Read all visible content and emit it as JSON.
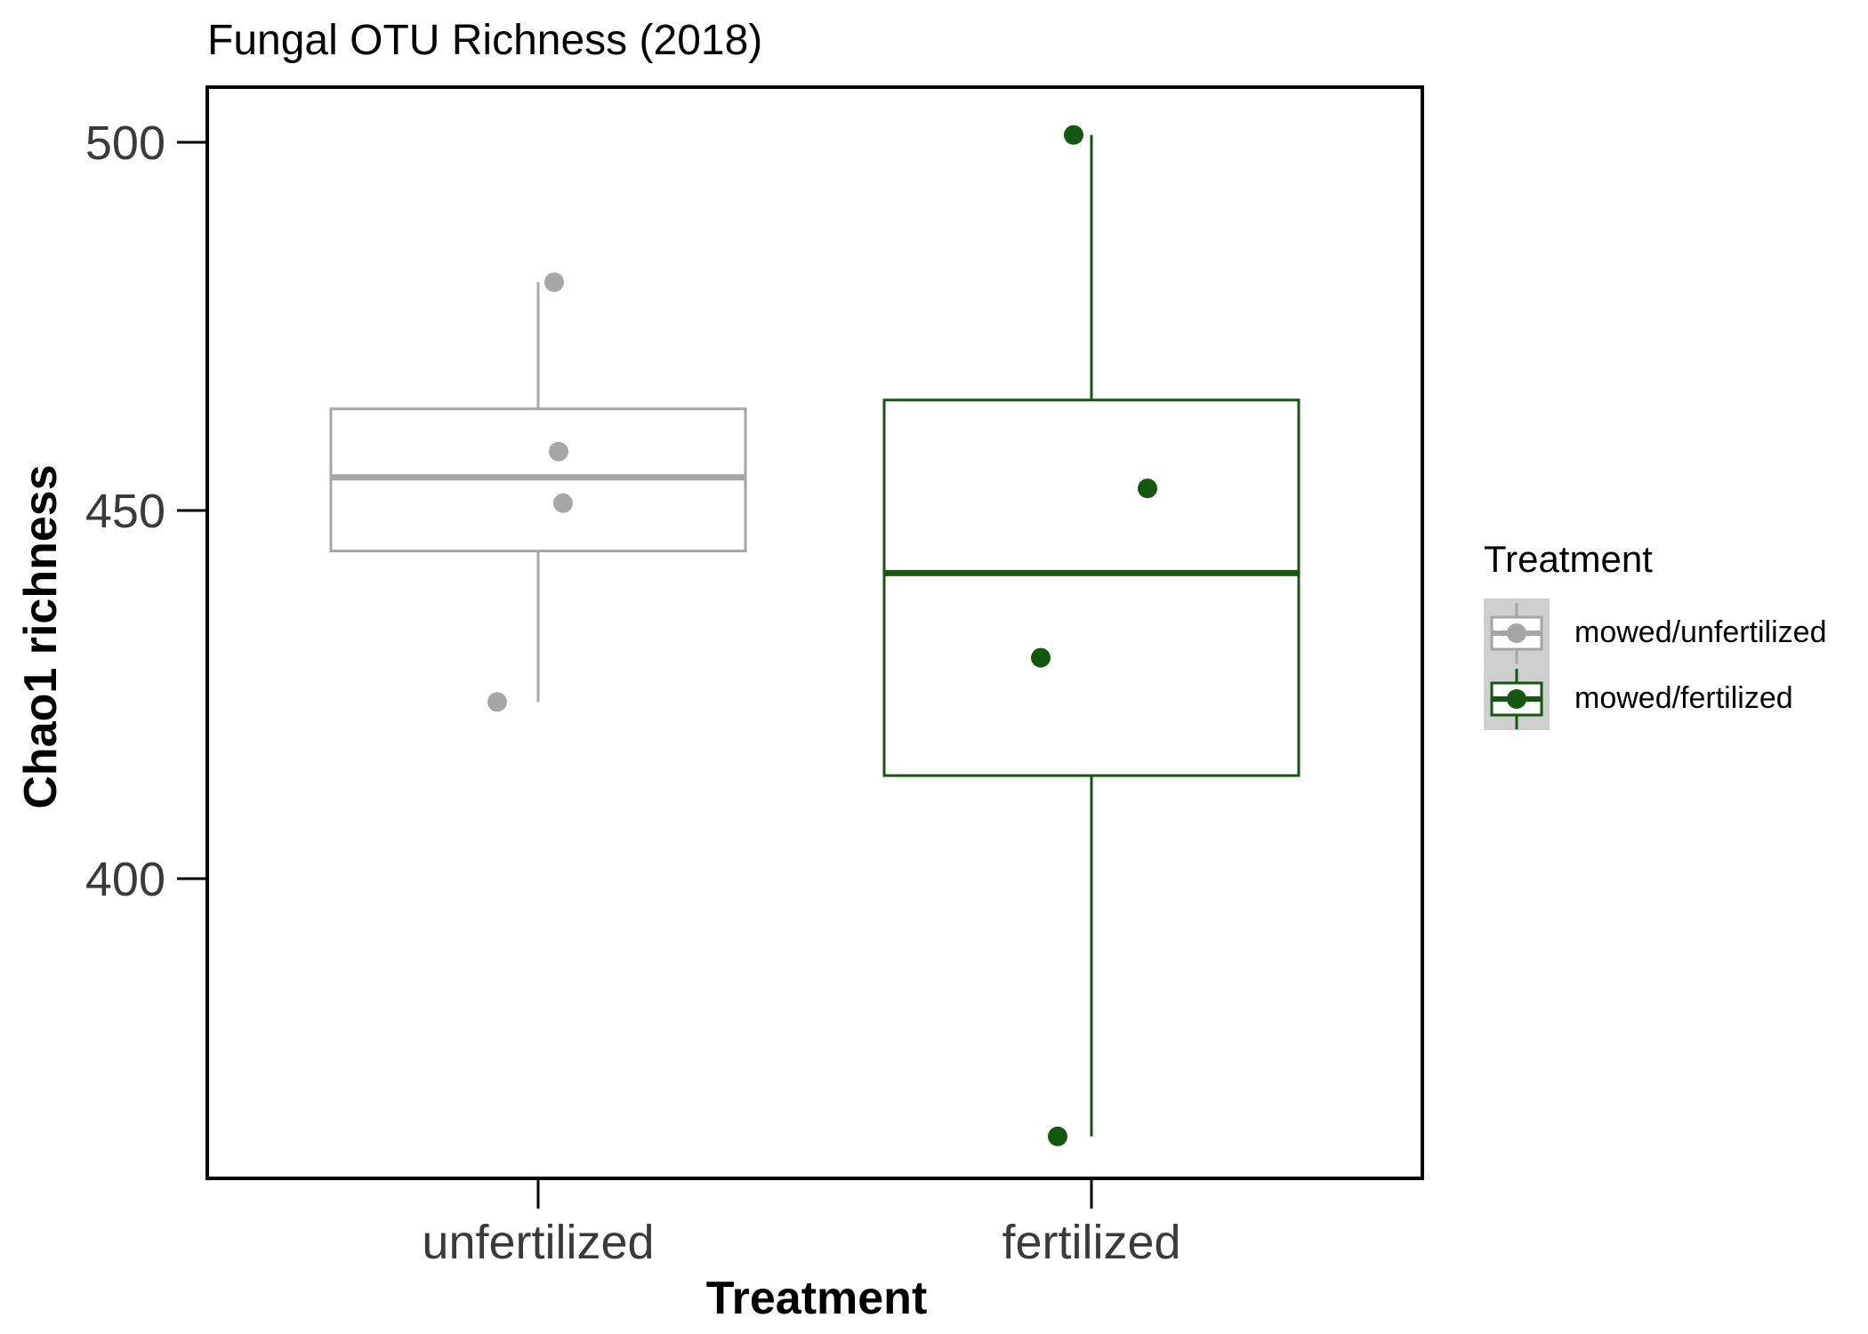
{
  "chart_data": {
    "type": "boxplot",
    "title": "Fungal OTU Richness (2018)",
    "xlabel": "Treatment",
    "ylabel": "Chao1 richness",
    "categories": [
      "unfertilized",
      "fertilized"
    ],
    "ylim": [
      362,
      509
    ],
    "yticks": [
      400,
      450,
      500
    ],
    "grid": false,
    "legend": {
      "title": "Treatment",
      "position": "right",
      "entries": [
        "mowed/unfertilized",
        "mowed/fertilized"
      ]
    },
    "series": [
      {
        "name": "mowed/unfertilized",
        "category": "unfertilized",
        "color": "#a6a6a6",
        "whisker_low": 424,
        "q1": 444.5,
        "median": 454.5,
        "q3": 463.8,
        "whisker_high": 481,
        "points": [
          481,
          458,
          451,
          424
        ]
      },
      {
        "name": "mowed/fertilized",
        "category": "fertilized",
        "color": "#14570f",
        "whisker_low": 365,
        "q1": 414,
        "median": 441.5,
        "q3": 465,
        "whisker_high": 501,
        "points": [
          501,
          453,
          430,
          365
        ]
      }
    ]
  }
}
